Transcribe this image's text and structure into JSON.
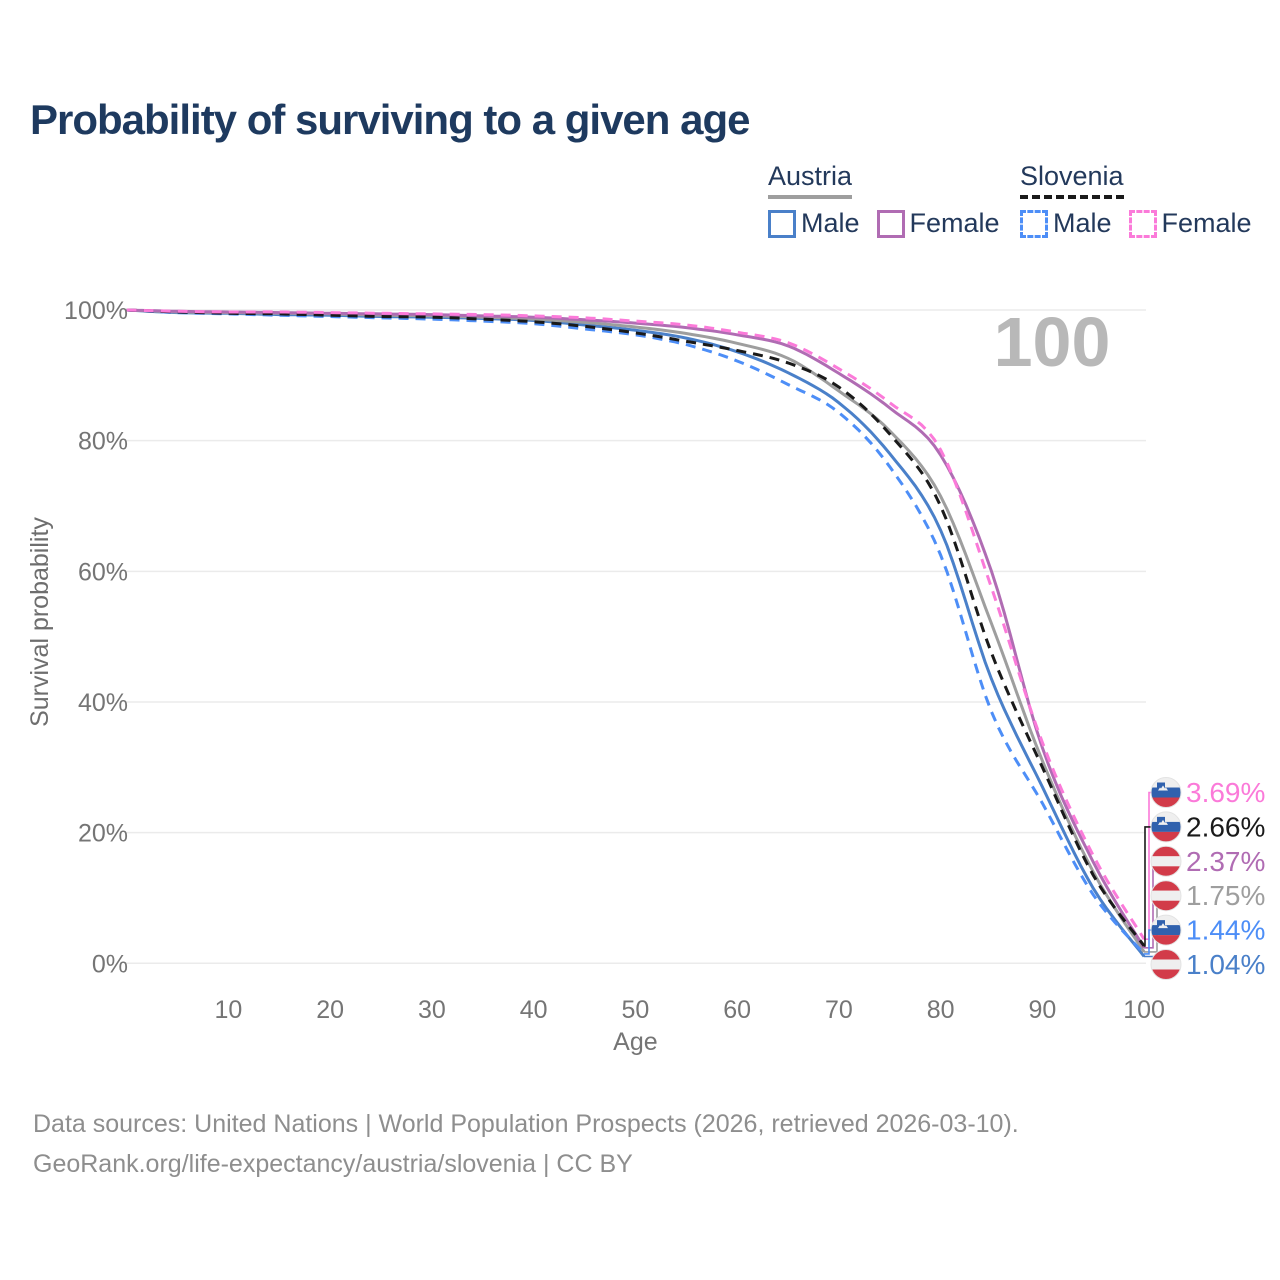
{
  "title": "Probability of surviving to a given age",
  "legend": {
    "groups": [
      {
        "id": "austria",
        "label": "Austria",
        "underline_style": "solid",
        "underline_color": "#9e9e9e",
        "items": [
          {
            "id": "austria-male",
            "label": "Male",
            "color": "#4a80c9",
            "dash": "solid"
          },
          {
            "id": "austria-female",
            "label": "Female",
            "color": "#b06cb3",
            "dash": "solid"
          }
        ]
      },
      {
        "id": "slovenia",
        "label": "Slovenia",
        "underline_style": "dashed",
        "underline_color": "#1a1a1a",
        "items": [
          {
            "id": "slovenia-male",
            "label": "Male",
            "color": "#4d8ef7",
            "dash": "dashed"
          },
          {
            "id": "slovenia-female",
            "label": "Female",
            "color": "#fb7ad9",
            "dash": "dashed"
          }
        ]
      }
    ]
  },
  "chart_data": {
    "type": "line",
    "title": "Probability of surviving to a given age",
    "xlabel": "Age",
    "ylabel": "Survival probability",
    "xlim": [
      0,
      100
    ],
    "ylim": [
      0,
      100
    ],
    "grid": "horizontal",
    "legend_position": "top-right",
    "watermark": "100",
    "x_ticks": [
      10,
      20,
      30,
      40,
      50,
      60,
      70,
      80,
      90,
      100
    ],
    "y_ticks": [
      0,
      20,
      40,
      60,
      80,
      100
    ],
    "y_tick_suffix": "%",
    "ages": [
      0,
      5,
      10,
      15,
      20,
      25,
      30,
      35,
      40,
      45,
      50,
      55,
      60,
      65,
      70,
      75,
      80,
      85,
      90,
      95,
      100
    ],
    "series": [
      {
        "id": "austria-male",
        "name": "Austria Male",
        "country": "austria",
        "sex": "male",
        "color": "#4a80c9",
        "dash": "solid",
        "end_label": "1.04%",
        "end_value": 1.04,
        "values": [
          100,
          99.6,
          99.5,
          99.3,
          99.2,
          99.0,
          98.9,
          98.7,
          98.4,
          97.7,
          96.9,
          95.7,
          93.6,
          90.4,
          85.8,
          78.0,
          66.3,
          43.5,
          27.0,
          11.5,
          1.04
        ]
      },
      {
        "id": "austria-total",
        "name": "Austria",
        "country": "austria",
        "sex": "total",
        "color": "#9e9e9e",
        "dash": "solid",
        "end_label": "1.75%",
        "end_value": 1.75,
        "values": [
          100,
          99.7,
          99.6,
          99.5,
          99.4,
          99.2,
          99.1,
          98.9,
          98.6,
          98.1,
          97.4,
          96.4,
          94.9,
          92.6,
          87.6,
          81.5,
          71.5,
          52.0,
          31.0,
          14.0,
          1.75
        ]
      },
      {
        "id": "austria-female",
        "name": "Austria Female",
        "country": "austria",
        "sex": "female",
        "color": "#b06cb3",
        "dash": "solid",
        "end_label": "2.37%",
        "end_value": 2.37,
        "values": [
          100,
          99.8,
          99.7,
          99.6,
          99.5,
          99.4,
          99.3,
          99.1,
          98.9,
          98.5,
          98.0,
          97.3,
          96.2,
          94.5,
          90.3,
          85.0,
          77.8,
          60.0,
          33.0,
          15.5,
          2.37
        ]
      },
      {
        "id": "slovenia-male",
        "name": "Slovenia Male",
        "country": "slovenia",
        "sex": "male",
        "color": "#4d8ef7",
        "dash": "dashed",
        "end_label": "1.44%",
        "end_value": 1.44,
        "values": [
          100,
          99.6,
          99.4,
          99.2,
          99.0,
          98.8,
          98.6,
          98.3,
          97.9,
          97.1,
          96.2,
          94.7,
          92.2,
          88.6,
          84.3,
          76.0,
          62.5,
          38.5,
          24.5,
          10.5,
          1.44
        ]
      },
      {
        "id": "slovenia-total",
        "name": "Slovenia",
        "country": "slovenia",
        "sex": "total",
        "color": "#1a1a1a",
        "dash": "dashed",
        "end_label": "2.66%",
        "end_value": 2.66,
        "values": [
          100,
          99.7,
          99.5,
          99.4,
          99.2,
          99.0,
          98.9,
          98.6,
          98.2,
          97.5,
          96.5,
          95.2,
          93.8,
          91.9,
          88.2,
          81.0,
          70.0,
          47.5,
          30.0,
          13.5,
          2.66
        ]
      },
      {
        "id": "slovenia-female",
        "name": "Slovenia Female",
        "country": "slovenia",
        "sex": "female",
        "color": "#fb7ad9",
        "dash": "dashed",
        "end_label": "3.69%",
        "end_value": 3.69,
        "values": [
          100,
          99.8,
          99.7,
          99.7,
          99.6,
          99.5,
          99.4,
          99.3,
          99.1,
          98.8,
          98.3,
          97.7,
          96.6,
          95.0,
          91.0,
          85.8,
          78.6,
          57.5,
          33.8,
          16.5,
          3.69
        ]
      }
    ]
  },
  "flags": {
    "slovenia": {
      "white": "#efefef",
      "blue": "#3061ad",
      "red": "#d23b49"
    },
    "austria": {
      "red": "#d23b49",
      "white": "#efefef"
    }
  },
  "colors": {
    "title": "#1e3a5f",
    "axis_text": "#757575",
    "gridline": "#ebebeb",
    "watermark": "#b8b8b8",
    "footer_text": "#8e8e8e"
  },
  "footer": {
    "line1": "Data sources: United Nations | World Population Prospects (2026, retrieved 2026-03-10).",
    "line2": "GeoRank.org/life-expectancy/austria/slovenia | CC BY"
  }
}
